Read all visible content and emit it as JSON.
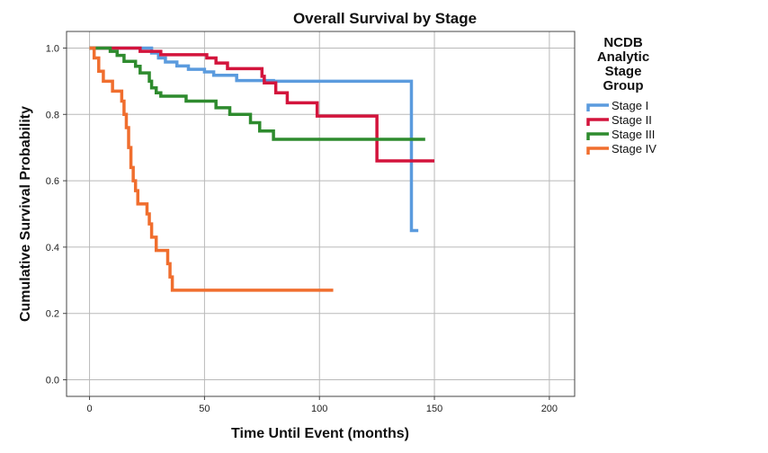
{
  "chart_data": {
    "type": "line",
    "step": true,
    "title": "Overall Survival by Stage",
    "xlabel": "Time Until Event (months)",
    "ylabel": "Cumulative Survival Probability",
    "xlim": [
      -10,
      211
    ],
    "ylim": [
      -0.05,
      1.05
    ],
    "xticks": [
      0,
      50,
      100,
      150,
      200
    ],
    "yticks": [
      0.0,
      0.2,
      0.4,
      0.6,
      0.8,
      1.0
    ],
    "xtick_labels": [
      "0",
      "50",
      "100",
      "150",
      "200"
    ],
    "ytick_labels": [
      "0.0",
      "0.2",
      "0.4",
      "0.6",
      "0.8",
      "1.0"
    ],
    "grid": true,
    "legend": {
      "title_lines": [
        "NCDB",
        "Analytic",
        "Stage",
        "Group"
      ],
      "position": "right"
    },
    "series": [
      {
        "name": "Stage I",
        "color": "#5b9bde",
        "points": [
          [
            0,
            1.0
          ],
          [
            25,
            1.0
          ],
          [
            27,
            0.985
          ],
          [
            30,
            0.97
          ],
          [
            33,
            0.958
          ],
          [
            38,
            0.946
          ],
          [
            43,
            0.936
          ],
          [
            50,
            0.928
          ],
          [
            54,
            0.918
          ],
          [
            64,
            0.902
          ],
          [
            80,
            0.9
          ],
          [
            140,
            0.9
          ],
          [
            140,
            0.45
          ],
          [
            143,
            0.45
          ]
        ]
      },
      {
        "name": "Stage II",
        "color": "#d3143c",
        "points": [
          [
            0,
            1.0
          ],
          [
            21,
            1.0
          ],
          [
            22,
            0.99
          ],
          [
            31,
            0.98
          ],
          [
            51,
            0.97
          ],
          [
            55,
            0.955
          ],
          [
            60,
            0.938
          ],
          [
            75,
            0.915
          ],
          [
            76,
            0.895
          ],
          [
            81,
            0.865
          ],
          [
            86,
            0.835
          ],
          [
            99,
            0.795
          ],
          [
            125,
            0.795
          ],
          [
            125,
            0.66
          ],
          [
            150,
            0.66
          ]
        ]
      },
      {
        "name": "Stage III",
        "color": "#2e8b2e",
        "points": [
          [
            0,
            1.0
          ],
          [
            8,
            1.0
          ],
          [
            9,
            0.99
          ],
          [
            12,
            0.978
          ],
          [
            15,
            0.96
          ],
          [
            20,
            0.945
          ],
          [
            22,
            0.925
          ],
          [
            26,
            0.9
          ],
          [
            27,
            0.88
          ],
          [
            29,
            0.865
          ],
          [
            31,
            0.855
          ],
          [
            42,
            0.84
          ],
          [
            55,
            0.82
          ],
          [
            61,
            0.8
          ],
          [
            70,
            0.775
          ],
          [
            74,
            0.75
          ],
          [
            80,
            0.725
          ],
          [
            146,
            0.725
          ]
        ]
      },
      {
        "name": "Stage IV",
        "color": "#f06e2e",
        "points": [
          [
            0,
            1.0
          ],
          [
            2,
            0.97
          ],
          [
            4,
            0.93
          ],
          [
            6,
            0.9
          ],
          [
            10,
            0.87
          ],
          [
            14,
            0.84
          ],
          [
            15,
            0.8
          ],
          [
            16,
            0.76
          ],
          [
            17,
            0.7
          ],
          [
            18,
            0.64
          ],
          [
            19,
            0.6
          ],
          [
            20,
            0.57
          ],
          [
            21,
            0.53
          ],
          [
            25,
            0.5
          ],
          [
            26,
            0.47
          ],
          [
            27,
            0.43
          ],
          [
            29,
            0.39
          ],
          [
            34,
            0.35
          ],
          [
            35,
            0.31
          ],
          [
            36,
            0.27
          ],
          [
            106,
            0.27
          ]
        ]
      }
    ]
  }
}
